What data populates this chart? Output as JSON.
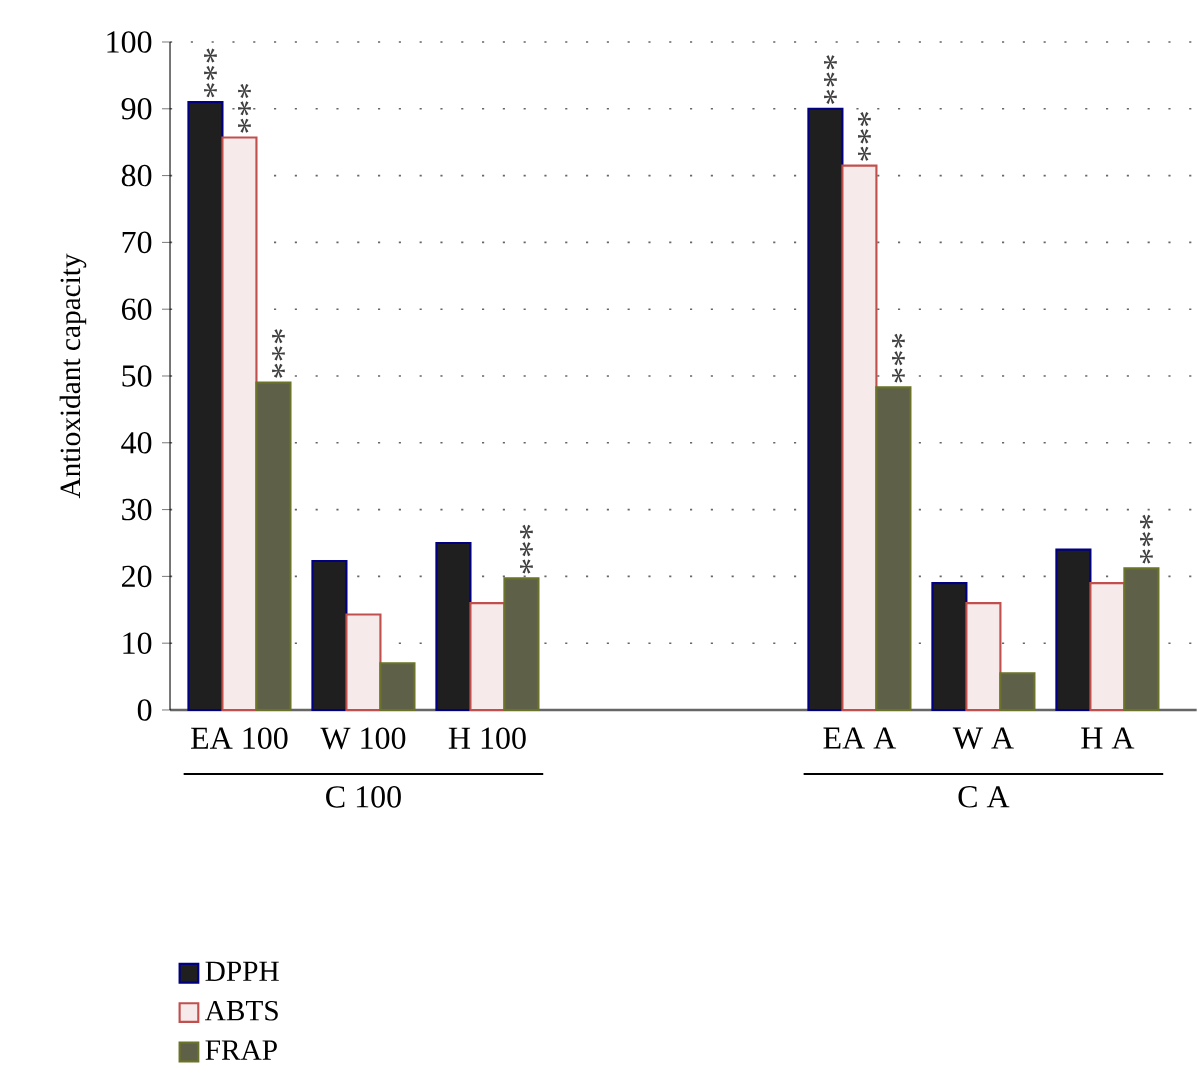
{
  "chart_data": {
    "type": "bar",
    "ylabel": "Antioxidant capacity",
    "categories": [
      "EA 100",
      "W 100",
      "H 100",
      null,
      null,
      "EA A",
      "W A",
      "H A"
    ],
    "series": [
      {
        "name": "DPPH",
        "color": "#1f1f1f",
        "values": [
          91,
          22.3,
          25,
          null,
          null,
          90,
          19,
          24
        ]
      },
      {
        "name": "ABTS",
        "color": "#c0504d",
        "values": [
          85.7,
          14.3,
          16,
          null,
          null,
          81.5,
          16,
          19
        ]
      },
      {
        "name": "FRAP",
        "color": "#5e6148",
        "values": [
          49,
          7,
          19.7,
          null,
          null,
          48.3,
          5.5,
          21.2
        ]
      }
    ],
    "ylim": [
      0,
      100
    ],
    "yticks": [
      0,
      10,
      20,
      30,
      40,
      50,
      60,
      70,
      80,
      90,
      100
    ],
    "grid": "y",
    "legend": "bottom left",
    "annotations": [
      "C 100",
      "C A",
      "***",
      "***",
      "***",
      "***",
      "***",
      "***",
      "***",
      "***"
    ]
  }
}
